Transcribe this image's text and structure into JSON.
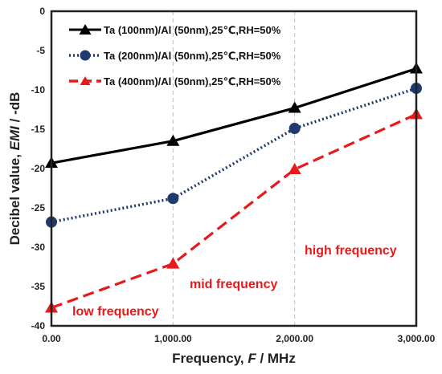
{
  "chart_data": {
    "type": "line",
    "x": [
      0,
      1000,
      2000,
      3000
    ],
    "x_tick_labels": [
      "0.00",
      "1,000.00",
      "2,000.00",
      "3,000.00"
    ],
    "xlim": [
      0,
      3000
    ],
    "y_ticks": [
      0,
      -5,
      -10,
      -15,
      -20,
      -25,
      -30,
      -35,
      -40
    ],
    "y_tick_labels": [
      "0",
      "-5",
      "-10",
      "-15",
      "-20",
      "-25",
      "-30",
      "-35",
      "-40"
    ],
    "ylim": [
      -40,
      0
    ],
    "xlabel": "Frequency, F / MHz",
    "ylabel": "Decibel value, EMI / -dB",
    "grid": "vertical dashed at x ticks",
    "legend_placement": "top-left",
    "series": [
      {
        "name": "Ta (100nm)/Al (50nm),25℃,RH=50%",
        "values": [
          -19.3,
          -16.5,
          -12.3,
          -7.3
        ],
        "color": "#000000",
        "marker": "triangle",
        "line": "solid"
      },
      {
        "name": "Ta (200nm)/Al (50nm),25℃,RH=50%",
        "values": [
          -26.8,
          -23.8,
          -14.9,
          -9.8
        ],
        "color": "#1f3a6e",
        "marker": "circle",
        "line": "dotted"
      },
      {
        "name": "Ta (400nm)/Al (50nm),25℃,RH=50%",
        "values": [
          -37.7,
          -32.1,
          -20.1,
          -13.1
        ],
        "color": "#e8191a",
        "marker": "triangle",
        "line": "dashed"
      }
    ],
    "annotations": [
      "low frequency",
      "mid frequency",
      "high frequency"
    ],
    "annotation_color": "#e8191a"
  }
}
